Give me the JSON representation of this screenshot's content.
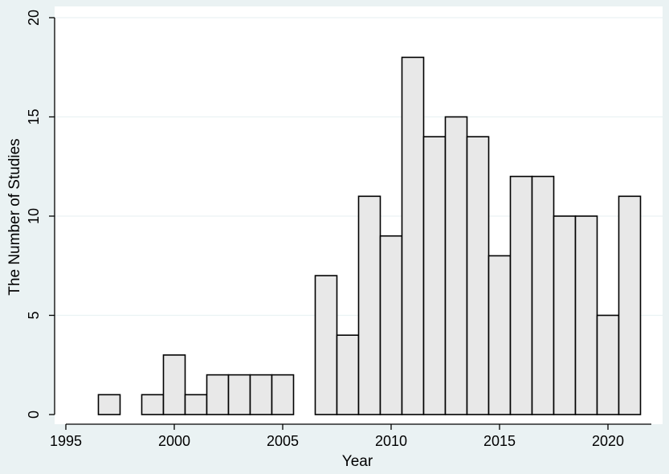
{
  "chart_data": {
    "type": "bar",
    "title": "",
    "xlabel": "Year",
    "ylabel": "The Number of Studies",
    "xlim": [
      1995,
      2022
    ],
    "ylim": [
      0,
      20
    ],
    "xticks": [
      1995,
      2000,
      2005,
      2010,
      2015,
      2020
    ],
    "yticks": [
      0,
      5,
      10,
      15,
      20
    ],
    "grid": "horizontal",
    "legend": "none",
    "bins": [
      {
        "x": 1997,
        "value": 1
      },
      {
        "x": 1999,
        "value": 1
      },
      {
        "x": 2000,
        "value": 3
      },
      {
        "x": 2001,
        "value": 1
      },
      {
        "x": 2002,
        "value": 2
      },
      {
        "x": 2003,
        "value": 2
      },
      {
        "x": 2004,
        "value": 2
      },
      {
        "x": 2005,
        "value": 2
      },
      {
        "x": 2007,
        "value": 7
      },
      {
        "x": 2008,
        "value": 4
      },
      {
        "x": 2009,
        "value": 11
      },
      {
        "x": 2010,
        "value": 9
      },
      {
        "x": 2011,
        "value": 18
      },
      {
        "x": 2012,
        "value": 14
      },
      {
        "x": 2013,
        "value": 15
      },
      {
        "x": 2014,
        "value": 14
      },
      {
        "x": 2015,
        "value": 8
      },
      {
        "x": 2016,
        "value": 12
      },
      {
        "x": 2017,
        "value": 12
      },
      {
        "x": 2018,
        "value": 10
      },
      {
        "x": 2019,
        "value": 10
      },
      {
        "x": 2020,
        "value": 5
      },
      {
        "x": 2021,
        "value": 11
      }
    ]
  },
  "colors": {
    "outer_background": "#eaf2f3",
    "plot_background": "#ffffff",
    "bar_fill": "#e8e8e8",
    "bar_stroke": "#000000",
    "grid": "#eaf2f3",
    "axis": "#000000"
  }
}
